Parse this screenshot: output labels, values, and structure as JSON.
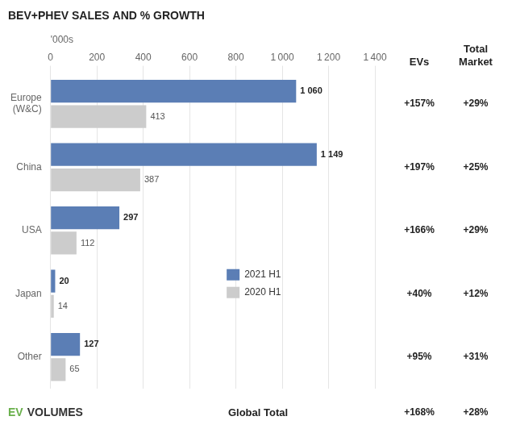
{
  "chart_data": {
    "type": "bar",
    "orientation": "horizontal",
    "title": "BEV+PHEV SALES AND % GROWTH",
    "xlabel": "'000s",
    "categories": [
      "Europe\n(W&C)",
      "China",
      "USA",
      "Japan",
      "Other"
    ],
    "series": [
      {
        "name": "2021 H1",
        "color": "#5b7eb5",
        "values": [
          1060,
          1149,
          297,
          20,
          127
        ],
        "value_labels": [
          "1 060",
          "1 149",
          "297",
          "20",
          "127"
        ]
      },
      {
        "name": "2020 H1",
        "color": "#cccccc",
        "values": [
          413,
          387,
          112,
          14,
          65
        ]
      }
    ],
    "data_labels": true,
    "xlim": [
      0,
      1400
    ],
    "xticks": [
      0,
      200,
      400,
      600,
      800,
      {
        "value": 1000,
        "label": "1 000"
      },
      {
        "value": 1200,
        "label": "1 200"
      },
      {
        "value": 1400,
        "label": "1 400"
      }
    ],
    "grid": true,
    "legend": "lower right",
    "columns": [
      {
        "header": [
          "EVs"
        ],
        "values": [
          "+157%",
          "+197%",
          "+166%",
          "+40%",
          "+95%"
        ],
        "total": "+168%"
      },
      {
        "header": [
          "Total",
          "Market"
        ],
        "values": [
          "+29%",
          "+25%",
          "+29%",
          "+12%",
          "+31%"
        ],
        "total": "+28%"
      }
    ],
    "total_label": "Global Total",
    "watermark": [
      {
        "text": "EV",
        "color": "#6ab04c"
      },
      {
        "text": "VOLUMES",
        "color": "#333333"
      }
    ]
  }
}
